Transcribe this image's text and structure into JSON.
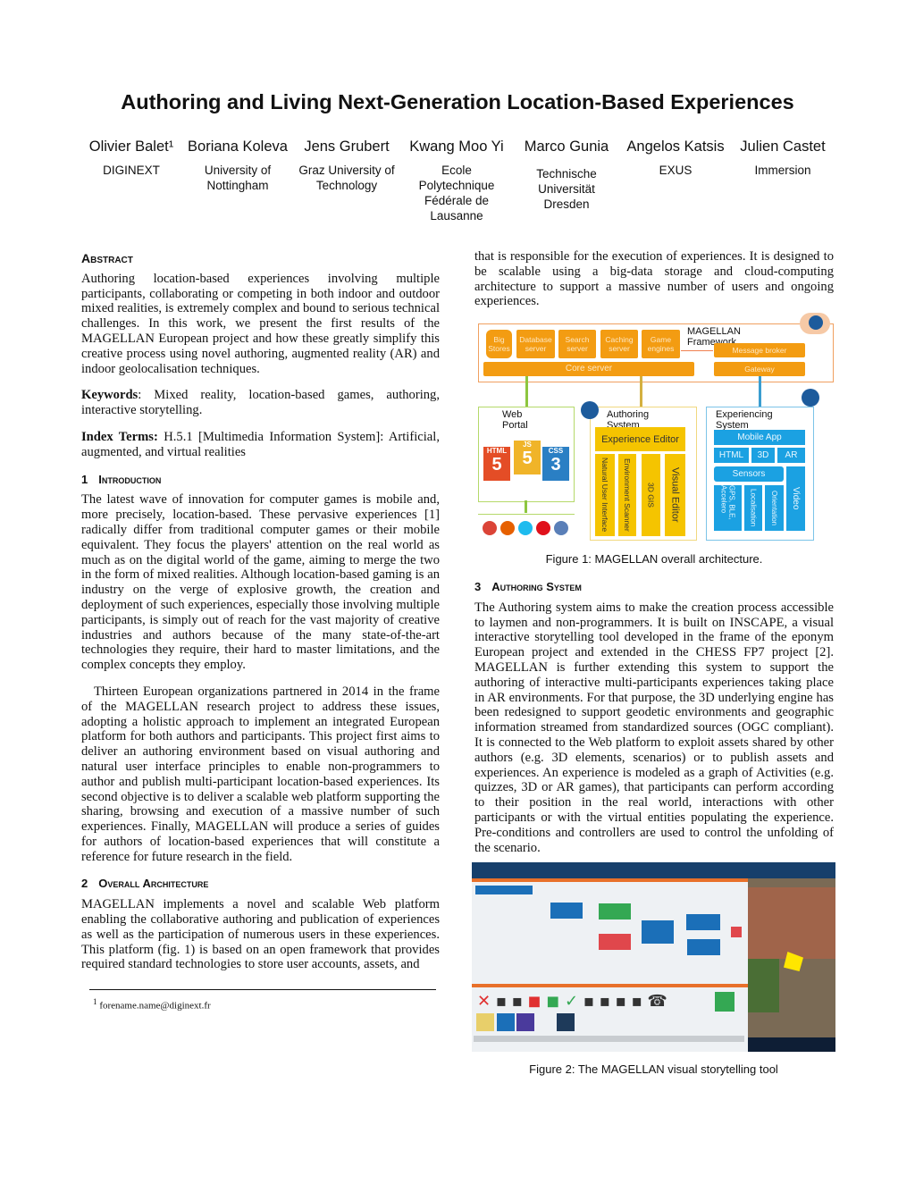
{
  "title": "Authoring and Living Next-Generation Location-Based Experiences",
  "authors": [
    {
      "name": "Olivier Balet¹",
      "affiliation": "DIGINEXT"
    },
    {
      "name": "Boriana Koleva",
      "affiliation": "University of Nottingham"
    },
    {
      "name": "Jens Grubert",
      "affiliation": "Graz University of Technology"
    },
    {
      "name": "Kwang Moo Yi",
      "affiliation": "Ecole Polytechnique Fédérale de Lausanne"
    },
    {
      "name": "Marco Gunia",
      "affiliation": "Technische Universität Dresden"
    },
    {
      "name": "Angelos Katsis",
      "affiliation": "EXUS"
    },
    {
      "name": "Julien Castet",
      "affiliation": "Immersion"
    }
  ],
  "abstract": {
    "heading": "Abstract",
    "text": "Authoring location-based experiences involving multiple participants, collaborating or competing in both indoor and outdoor mixed realities, is extremely complex and bound to serious technical challenges. In this work, we present the first results of the MAGELLAN European project and how these greatly simplify this creative process using novel authoring, augmented reality (AR) and indoor geolocalisation techniques."
  },
  "keywords": {
    "label": "Keywords",
    "text": ": Mixed reality, location-based games, authoring, interactive storytelling."
  },
  "index_terms": {
    "label": "Index Terms:",
    "text": " H.5.1 [Multimedia Information System]: Artificial, augmented, and virtual realities"
  },
  "sections": [
    {
      "number": "1",
      "title": "Introduction",
      "paragraphs": [
        "The latest wave of innovation for computer games is mobile and, more precisely, location-based. These pervasive experiences [1] radically differ from traditional computer games or their mobile equivalent. They focus the players' attention on the real world as much as on the digital world of the game, aiming to merge the two in the form of mixed realities. Although location-based gaming is an industry on the verge of explosive growth, the creation and deployment of such experiences, especially those involving multiple participants, is simply out of reach for the vast majority of creative industries and authors because of the many state-of-the-art technologies they require, their hard to master limitations, and the complex concepts they employ.",
        "Thirteen European organizations partnered in 2014 in the frame of the MAGELLAN research project to address these issues, adopting a holistic approach to implement an integrated European platform for both authors and participants. This project first aims to deliver an authoring environment based on visual authoring and natural user interface principles to enable non-programmers to author and publish multi-participant location-based experiences. Its second objective is to deliver a scalable web platform supporting the sharing, browsing and execution of a massive number of such experiences. Finally, MAGELLAN will produce a series of guides for authors of location-based experiences that will constitute a reference for future research in the field."
      ]
    },
    {
      "number": "2",
      "title": "Overall Architecture",
      "paragraphs": [
        "MAGELLAN implements a novel and scalable Web platform enabling the collaborative authoring and publication of experiences as well as the participation of numerous users in these experiences. This platform (fig. 1) is based on an open framework that provides required standard technologies to store user accounts, assets, and"
      ],
      "continuation": "that is responsible for the execution of experiences. It is designed to be scalable using a big-data storage and cloud-computing architecture to support a massive number of users and ongoing experiences."
    },
    {
      "number": "3",
      "title": "Authoring System",
      "paragraphs": [
        "The Authoring system aims to make the creation process accessible to laymen and non-programmers. It is built on INSCAPE, a visual interactive storytelling tool developed in the frame of the eponym European project and extended in the CHESS FP7 project [2]. MAGELLAN is further extending this system to support the authoring of interactive multi-participants experiences taking place in AR environments. For that purpose, the 3D underlying engine has been redesigned to support geodetic environments and geographic information streamed from standardized sources (OGC compliant). It is connected to the Web platform to exploit assets shared by other authors (e.g. 3D elements, scenarios) or to publish assets and experiences. An experience is modeled as a graph of Activities (e.g. quizzes, 3D or AR games), that participants can perform according to their position in the real world, interactions with other participants or with the virtual entities populating the experience. Pre-conditions and controllers are used to control the unfolding of the scenario."
      ]
    }
  ],
  "footnote": {
    "mark": "1",
    "text": "forename.name@diginext.fr"
  },
  "figure1": {
    "caption": "Figure 1:  MAGELLAN overall architecture.",
    "framework_label": "MAGELLAN Framework",
    "big_stores": "Big Stores",
    "database_server": "Database server",
    "search_server": "Search server",
    "caching_server": "Caching server",
    "game_engines": "Game engines",
    "core_server": "Core server",
    "message_broker": "Message broker",
    "gateway": "Gateway",
    "web_portal": "Web Portal",
    "web_icons": [
      "HTML",
      "JS",
      "CSS"
    ],
    "authoring_system": "Authoring System",
    "experience_editor": "Experience Editor",
    "authoring_modules": [
      "Natural User Interface",
      "Environment Scanner",
      "3D GIS",
      "Visual Editor"
    ],
    "experiencing_system": "Experiencing System",
    "mobile_app": "Mobile App",
    "mobile_tech": [
      "HTML",
      "3D",
      "AR"
    ],
    "sensors": "Sensors",
    "sensor_items": [
      "GPS, BLE, Accelero",
      "Localisation",
      "Orientation"
    ],
    "video": "Video",
    "colors": {
      "orange": "#f39c12",
      "yellow": "#f5c400",
      "blue": "#1ba1e2",
      "green": "#8dc63f"
    }
  },
  "figure2": {
    "caption": "Figure 2:  The MAGELLAN visual storytelling tool"
  }
}
